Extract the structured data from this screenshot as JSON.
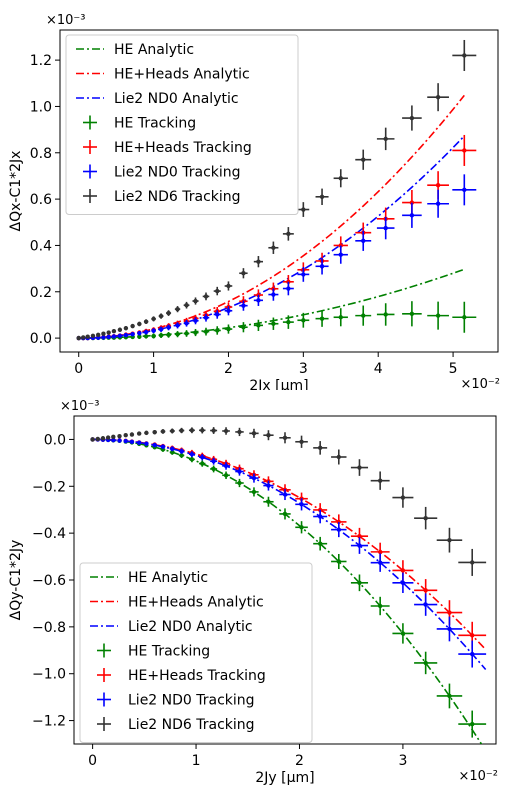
{
  "chart_data": [
    {
      "type": "line",
      "xlabel": "2Jx [μm]",
      "ylabel": "ΔQx-C1*2Jx",
      "x_multiplier_label": "×10⁻²",
      "y_multiplier_label": "×10⁻³",
      "xlim": [
        -0.25,
        5.6
      ],
      "ylim": [
        -0.06,
        1.33
      ],
      "xticks": [
        0,
        1,
        2,
        3,
        4,
        5
      ],
      "yticks": [
        0.0,
        0.2,
        0.4,
        0.6,
        0.8,
        1.0,
        1.2
      ],
      "xtick_labels": [
        "0",
        "1",
        "2",
        "3",
        "4",
        "5"
      ],
      "ytick_labels": [
        "0.0",
        "0.2",
        "0.4",
        "0.6",
        "0.8",
        "1.0",
        "1.2"
      ],
      "legend_position": "top-left",
      "series": [
        {
          "name": "HE Analytic",
          "kind": "line",
          "color": "#008000",
          "coef": 0.0112,
          "power": 2,
          "x_max": 5.15
        },
        {
          "name": "HE+Heads Analytic",
          "kind": "line",
          "color": "#ff0000",
          "coef": 0.0395,
          "power": 2,
          "x_max": 5.15
        },
        {
          "name": "Lie2 ND0 Analytic",
          "kind": "line",
          "color": "#0000ff",
          "coef": 0.0329,
          "power": 2,
          "x_max": 5.15
        },
        {
          "name": "HE Tracking",
          "kind": "points",
          "color": "#008000",
          "x": [
            0.0,
            0.06,
            0.12,
            0.19,
            0.26,
            0.33,
            0.4,
            0.47,
            0.55,
            0.63,
            0.72,
            0.81,
            0.9,
            1.0,
            1.1,
            1.2,
            1.32,
            1.44,
            1.56,
            1.7,
            1.85,
            2.0,
            2.2,
            2.4,
            2.6,
            2.8,
            3.0,
            3.25,
            3.5,
            3.8,
            4.1,
            4.45,
            4.8,
            5.15
          ],
          "y": [
            0.0,
            0.0,
            0.0,
            0.0,
            0.001,
            0.001,
            0.002,
            0.002,
            0.003,
            0.004,
            0.005,
            0.006,
            0.008,
            0.009,
            0.012,
            0.014,
            0.017,
            0.02,
            0.024,
            0.028,
            0.033,
            0.039,
            0.047,
            0.055,
            0.062,
            0.069,
            0.077,
            0.084,
            0.09,
            0.097,
            0.102,
            0.105,
            0.097,
            0.09
          ],
          "xerr_scale": 0.14,
          "yerr_scale": 0.35
        },
        {
          "name": "HE+Heads Tracking",
          "kind": "points",
          "color": "#ff0000",
          "x": [
            0.0,
            0.06,
            0.12,
            0.19,
            0.26,
            0.33,
            0.4,
            0.47,
            0.55,
            0.63,
            0.72,
            0.81,
            0.9,
            1.0,
            1.1,
            1.2,
            1.32,
            1.44,
            1.56,
            1.7,
            1.85,
            2.0,
            2.2,
            2.4,
            2.6,
            2.8,
            3.0,
            3.25,
            3.5,
            3.8,
            4.1,
            4.45,
            4.8,
            5.15
          ],
          "y": [
            0.0,
            0.0,
            0.0,
            0.001,
            0.003,
            0.004,
            0.006,
            0.008,
            0.011,
            0.015,
            0.019,
            0.024,
            0.03,
            0.036,
            0.044,
            0.052,
            0.062,
            0.073,
            0.085,
            0.099,
            0.116,
            0.134,
            0.159,
            0.186,
            0.213,
            0.243,
            0.295,
            0.333,
            0.4,
            0.455,
            0.515,
            0.585,
            0.66,
            0.81
          ],
          "xerr_scale": 0.14,
          "yerr_scale": 0.35
        },
        {
          "name": "Lie2 ND0 Tracking",
          "kind": "points",
          "color": "#0000ff",
          "x": [
            0.0,
            0.06,
            0.12,
            0.19,
            0.26,
            0.33,
            0.4,
            0.47,
            0.55,
            0.63,
            0.72,
            0.81,
            0.9,
            1.0,
            1.1,
            1.2,
            1.32,
            1.44,
            1.56,
            1.7,
            1.85,
            2.0,
            2.2,
            2.4,
            2.6,
            2.8,
            3.0,
            3.25,
            3.5,
            3.8,
            4.1,
            4.45,
            4.8,
            5.15
          ],
          "y": [
            0.0,
            0.0,
            0.0,
            0.001,
            0.002,
            0.003,
            0.005,
            0.007,
            0.01,
            0.013,
            0.017,
            0.021,
            0.026,
            0.032,
            0.038,
            0.046,
            0.055,
            0.064,
            0.075,
            0.088,
            0.102,
            0.118,
            0.14,
            0.163,
            0.188,
            0.214,
            0.275,
            0.31,
            0.36,
            0.42,
            0.475,
            0.53,
            0.58,
            0.64
          ],
          "xerr_scale": 0.14,
          "yerr_scale": 0.35
        },
        {
          "name": "Lie2 ND6 Tracking",
          "kind": "points",
          "color": "#333333",
          "x": [
            0.0,
            0.06,
            0.12,
            0.19,
            0.26,
            0.33,
            0.4,
            0.47,
            0.55,
            0.63,
            0.72,
            0.81,
            0.9,
            1.0,
            1.1,
            1.2,
            1.32,
            1.44,
            1.56,
            1.7,
            1.85,
            2.0,
            2.2,
            2.4,
            2.6,
            2.8,
            3.0,
            3.25,
            3.5,
            3.8,
            4.1,
            4.45,
            4.8,
            5.15
          ],
          "y": [
            0.0,
            0.003,
            0.006,
            0.01,
            0.014,
            0.019,
            0.024,
            0.03,
            0.036,
            0.043,
            0.052,
            0.061,
            0.071,
            0.083,
            0.095,
            0.108,
            0.125,
            0.142,
            0.16,
            0.18,
            0.203,
            0.225,
            0.28,
            0.33,
            0.39,
            0.45,
            0.555,
            0.61,
            0.69,
            0.77,
            0.86,
            0.95,
            1.04,
            1.22
          ],
          "xerr_scale": 0.14,
          "yerr_scale": 0.35
        }
      ]
    },
    {
      "type": "line",
      "xlabel": "2Jy [μm]",
      "ylabel": "ΔQy-C1*2Jy",
      "x_multiplier_label": "×10⁻²",
      "y_multiplier_label": "×10⁻³",
      "xlim": [
        -0.18,
        3.9
      ],
      "ylim": [
        -1.3,
        0.1
      ],
      "xticks": [
        0,
        1,
        2,
        3
      ],
      "yticks": [
        0.0,
        -0.2,
        -0.4,
        -0.6,
        -0.8,
        -1.0,
        -1.2
      ],
      "xtick_labels": [
        "0",
        "1",
        "2",
        "3"
      ],
      "ytick_labels": [
        "0.0",
        "−0.2",
        "−0.4",
        "−0.6",
        "−0.8",
        "−1.0",
        "−1.2"
      ],
      "legend_position": "lower-left",
      "series": [
        {
          "name": "HE Analytic",
          "kind": "line",
          "color": "#008000",
          "coef": -0.092,
          "power": 2,
          "x_max": 3.8
        },
        {
          "name": "HE+Heads Analytic",
          "kind": "line",
          "color": "#ff0000",
          "coef": -0.0621,
          "power": 2,
          "x_max": 3.8
        },
        {
          "name": "Lie2 ND0 Analytic",
          "kind": "line",
          "color": "#0000ff",
          "coef": -0.068,
          "power": 2,
          "x_max": 3.8
        },
        {
          "name": "HE Tracking",
          "kind": "points",
          "color": "#008000",
          "x": [
            0.0,
            0.05,
            0.1,
            0.15,
            0.2,
            0.26,
            0.32,
            0.38,
            0.45,
            0.52,
            0.6,
            0.68,
            0.77,
            0.86,
            0.96,
            1.06,
            1.17,
            1.29,
            1.42,
            1.56,
            1.7,
            1.86,
            2.02,
            2.2,
            2.38,
            2.58,
            2.78,
            3.0,
            3.22,
            3.45,
            3.67
          ],
          "y": [
            0.0,
            0.0,
            -0.001,
            -0.002,
            -0.004,
            -0.006,
            -0.009,
            -0.013,
            -0.019,
            -0.025,
            -0.033,
            -0.043,
            -0.055,
            -0.068,
            -0.085,
            -0.103,
            -0.126,
            -0.153,
            -0.186,
            -0.224,
            -0.266,
            -0.318,
            -0.375,
            -0.445,
            -0.521,
            -0.612,
            -0.711,
            -0.828,
            -0.954,
            -1.095,
            -1.215
          ],
          "xerr_scale": 0.12,
          "yerr_scale": 0.3
        },
        {
          "name": "HE+Heads Tracking",
          "kind": "points",
          "color": "#ff0000",
          "x": [
            0.0,
            0.05,
            0.1,
            0.15,
            0.2,
            0.26,
            0.32,
            0.38,
            0.45,
            0.52,
            0.6,
            0.68,
            0.77,
            0.86,
            0.96,
            1.06,
            1.17,
            1.29,
            1.42,
            1.56,
            1.7,
            1.86,
            2.02,
            2.2,
            2.38,
            2.58,
            2.78,
            3.0,
            3.22,
            3.45,
            3.67
          ],
          "y": [
            0.0,
            0.0,
            -0.001,
            -0.001,
            -0.002,
            -0.004,
            -0.006,
            -0.009,
            -0.013,
            -0.017,
            -0.022,
            -0.029,
            -0.037,
            -0.046,
            -0.057,
            -0.07,
            -0.085,
            -0.103,
            -0.125,
            -0.151,
            -0.179,
            -0.215,
            -0.253,
            -0.301,
            -0.352,
            -0.413,
            -0.48,
            -0.559,
            -0.644,
            -0.739,
            -0.836
          ],
          "xerr_scale": 0.12,
          "yerr_scale": 0.3
        },
        {
          "name": "Lie2 ND0 Tracking",
          "kind": "points",
          "color": "#0000ff",
          "x": [
            0.0,
            0.05,
            0.1,
            0.15,
            0.2,
            0.26,
            0.32,
            0.38,
            0.45,
            0.52,
            0.6,
            0.68,
            0.77,
            0.86,
            0.96,
            1.06,
            1.17,
            1.29,
            1.42,
            1.56,
            1.7,
            1.86,
            2.02,
            2.2,
            2.38,
            2.58,
            2.78,
            3.0,
            3.22,
            3.45,
            3.67
          ],
          "y": [
            0.0,
            0.0,
            -0.001,
            -0.002,
            -0.003,
            -0.005,
            -0.007,
            -0.01,
            -0.014,
            -0.018,
            -0.024,
            -0.031,
            -0.04,
            -0.05,
            -0.063,
            -0.076,
            -0.093,
            -0.113,
            -0.137,
            -0.165,
            -0.197,
            -0.235,
            -0.277,
            -0.329,
            -0.385,
            -0.453,
            -0.526,
            -0.612,
            -0.705,
            -0.809,
            -0.916
          ],
          "xerr_scale": 0.12,
          "yerr_scale": 0.3
        },
        {
          "name": "Lie2 ND6 Tracking",
          "kind": "points",
          "color": "#333333",
          "x": [
            0.0,
            0.05,
            0.1,
            0.15,
            0.2,
            0.26,
            0.32,
            0.38,
            0.45,
            0.52,
            0.6,
            0.68,
            0.77,
            0.86,
            0.96,
            1.06,
            1.17,
            1.29,
            1.42,
            1.56,
            1.7,
            1.86,
            2.02,
            2.2,
            2.38,
            2.58,
            2.78,
            3.0,
            3.22,
            3.45,
            3.67
          ],
          "y": [
            0.0,
            0.002,
            0.005,
            0.008,
            0.011,
            0.014,
            0.018,
            0.021,
            0.025,
            0.028,
            0.031,
            0.034,
            0.036,
            0.038,
            0.039,
            0.039,
            0.038,
            0.036,
            0.032,
            0.026,
            0.018,
            0.007,
            -0.01,
            -0.036,
            -0.075,
            -0.12,
            -0.176,
            -0.248,
            -0.336,
            -0.43,
            -0.525
          ],
          "xerr_scale": 0.12,
          "yerr_scale": 0.3
        }
      ]
    }
  ]
}
